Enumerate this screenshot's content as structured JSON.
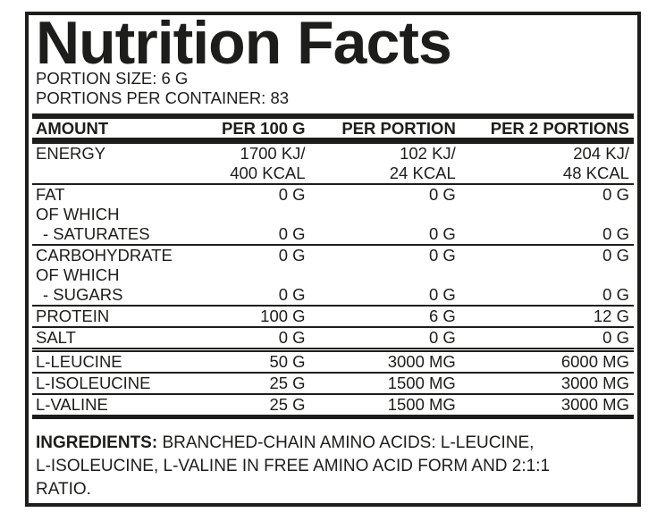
{
  "header": {
    "title": "Nutrition Facts",
    "portion_size": "PORTION SIZE: 6 G",
    "portions_per_container": "PORTIONS PER CONTAINER: 83"
  },
  "table": {
    "columns": [
      "AMOUNT",
      "PER 100 G",
      "PER PORTION",
      "PER 2 PORTIONS"
    ],
    "groups": [
      {
        "rows": [
          {
            "label": "ENERGY",
            "values": [
              "1700 KJ/",
              "102 KJ/",
              "204 KJ/"
            ]
          },
          {
            "label": "",
            "values": [
              "400 KCAL",
              "24 KCAL",
              "48 KCAL"
            ]
          }
        ]
      },
      {
        "rows": [
          {
            "label": "FAT",
            "values": [
              "0 G",
              "0 G",
              "0 G"
            ]
          },
          {
            "label": "OF WHICH",
            "values": [
              "",
              "",
              ""
            ]
          },
          {
            "label": "- SATURATES",
            "values": [
              "0 G",
              "0 G",
              "0 G"
            ]
          }
        ]
      },
      {
        "rows": [
          {
            "label": "CARBOHYDRATE",
            "values": [
              "0 G",
              "0 G",
              "0 G"
            ]
          },
          {
            "label": "OF WHICH",
            "values": [
              "",
              "",
              ""
            ]
          },
          {
            "label": "- SUGARS",
            "values": [
              "0 G",
              "0 G",
              "0 G"
            ]
          }
        ]
      },
      {
        "rows": [
          {
            "label": "PROTEIN",
            "values": [
              "100 G",
              "6 G",
              "12 G"
            ]
          }
        ]
      },
      {
        "rows": [
          {
            "label": "SALT",
            "values": [
              "0 G",
              "0 G",
              "0 G"
            ]
          }
        ]
      },
      {
        "rows": [
          {
            "label": "L-LEUCINE",
            "values": [
              "50 G",
              "3000 MG",
              "6000 MG"
            ]
          }
        ]
      },
      {
        "rows": [
          {
            "label": "L-ISOLEUCINE",
            "values": [
              "25 G",
              "1500 MG",
              "3000 MG"
            ]
          }
        ]
      },
      {
        "rows": [
          {
            "label": "L-VALINE",
            "values": [
              "25 G",
              "1500 MG",
              "3000 MG"
            ]
          }
        ]
      }
    ]
  },
  "ingredients": {
    "label": "INGREDIENTS:",
    "line1_rest": " BRANCHED-CHAIN AMINO ACIDS: L-LEUCINE,",
    "line2": "L-ISOLEUCINE, L-VALINE IN FREE AMINO ACID FORM AND 2:1:1",
    "line3": "RATIO."
  },
  "colors": {
    "text": "#1d1d1b",
    "background": "#ffffff"
  }
}
